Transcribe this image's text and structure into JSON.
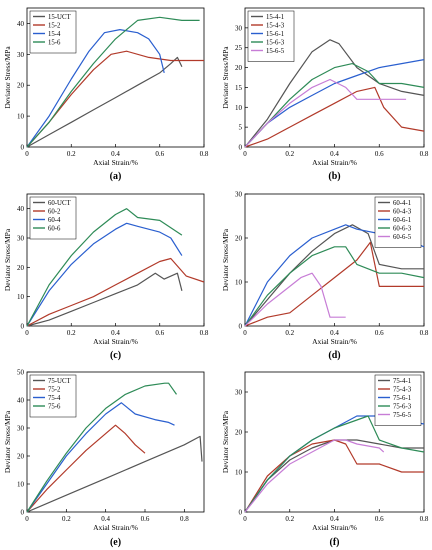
{
  "chart_data": [
    {
      "type": "line",
      "panel_label": "(a)",
      "xlabel": "Axial Strain/%",
      "ylabel": "Deviator Stress/MPa",
      "xlim": [
        0,
        0.8
      ],
      "ylim": [
        0,
        45
      ],
      "xticks": [
        0,
        0.2,
        0.4,
        0.6,
        0.8
      ],
      "yticks": [
        0,
        10,
        20,
        30,
        40
      ],
      "grid": false,
      "legend_position": "top-left",
      "series": [
        {
          "name": "15-UCT",
          "color": "#555555",
          "x": [
            0,
            0.1,
            0.2,
            0.3,
            0.4,
            0.5,
            0.6,
            0.65,
            0.68,
            0.7
          ],
          "y": [
            0,
            4,
            8,
            12,
            16,
            20,
            24,
            27,
            29,
            26
          ]
        },
        {
          "name": "15-2",
          "color": "#b23a2a",
          "x": [
            0,
            0.1,
            0.2,
            0.3,
            0.38,
            0.45,
            0.55,
            0.65,
            0.7,
            0.8
          ],
          "y": [
            0,
            8,
            17,
            25,
            30,
            31,
            29,
            28,
            28,
            28
          ]
        },
        {
          "name": "15-4",
          "color": "#2a5fcf",
          "x": [
            0,
            0.1,
            0.2,
            0.28,
            0.35,
            0.42,
            0.5,
            0.55,
            0.6,
            0.62
          ],
          "y": [
            0,
            10,
            22,
            31,
            37,
            38,
            37,
            35,
            30,
            24
          ]
        },
        {
          "name": "15-6",
          "color": "#2e8b57",
          "x": [
            0,
            0.1,
            0.2,
            0.3,
            0.4,
            0.45,
            0.5,
            0.6,
            0.7,
            0.78
          ],
          "y": [
            0,
            8,
            18,
            27,
            35,
            38,
            41,
            42,
            41,
            41
          ]
        }
      ]
    },
    {
      "type": "line",
      "panel_label": "(b)",
      "xlabel": "Axial Strain/%",
      "ylabel": "Deviator Stress/MPa",
      "xlim": [
        0,
        0.8
      ],
      "ylim": [
        0,
        35
      ],
      "xticks": [
        0,
        0.2,
        0.4,
        0.6,
        0.8
      ],
      "yticks": [
        0,
        5,
        10,
        15,
        20,
        25,
        30
      ],
      "grid": false,
      "legend_position": "top-left",
      "series": [
        {
          "name": "15-4-1",
          "color": "#555555",
          "x": [
            0,
            0.1,
            0.2,
            0.3,
            0.38,
            0.42,
            0.5,
            0.6,
            0.7,
            0.8
          ],
          "y": [
            0,
            7,
            16,
            24,
            27,
            26,
            20,
            16,
            14,
            13
          ]
        },
        {
          "name": "15-4-3",
          "color": "#b23a2a",
          "x": [
            0,
            0.1,
            0.2,
            0.3,
            0.4,
            0.5,
            0.58,
            0.62,
            0.7,
            0.8
          ],
          "y": [
            0,
            2,
            5,
            8,
            11,
            14,
            15,
            10,
            5,
            4
          ]
        },
        {
          "name": "15-6-1",
          "color": "#2a5fcf",
          "x": [
            0,
            0.1,
            0.2,
            0.3,
            0.4,
            0.5,
            0.6,
            0.7,
            0.8
          ],
          "y": [
            0,
            6,
            10,
            13,
            16,
            18,
            20,
            21,
            22
          ]
        },
        {
          "name": "15-6-3",
          "color": "#2e8b57",
          "x": [
            0,
            0.1,
            0.2,
            0.3,
            0.4,
            0.48,
            0.55,
            0.6,
            0.7,
            0.8
          ],
          "y": [
            0,
            6,
            12,
            17,
            20,
            21,
            19,
            16,
            16,
            15
          ]
        },
        {
          "name": "15-6-5",
          "color": "#c77dd6",
          "x": [
            0,
            0.1,
            0.2,
            0.3,
            0.38,
            0.45,
            0.5,
            0.6,
            0.72
          ],
          "y": [
            0,
            6,
            11,
            15,
            17,
            15,
            12,
            12,
            12
          ]
        }
      ]
    },
    {
      "type": "line",
      "panel_label": "(c)",
      "xlabel": "Axial Strain/%",
      "ylabel": "Deviator Stress/MPa",
      "xlim": [
        0,
        0.8
      ],
      "ylim": [
        0,
        45
      ],
      "xticks": [
        0,
        0.2,
        0.4,
        0.6,
        0.8
      ],
      "yticks": [
        0,
        10,
        20,
        30,
        40
      ],
      "grid": false,
      "legend_position": "top-left",
      "series": [
        {
          "name": "60-UCT",
          "color": "#555555",
          "x": [
            0,
            0.1,
            0.2,
            0.3,
            0.4,
            0.5,
            0.58,
            0.62,
            0.68,
            0.7
          ],
          "y": [
            0,
            2,
            5,
            8,
            11,
            14,
            18,
            16,
            18,
            12
          ]
        },
        {
          "name": "60-2",
          "color": "#b23a2a",
          "x": [
            0,
            0.1,
            0.2,
            0.3,
            0.4,
            0.5,
            0.6,
            0.65,
            0.72,
            0.8
          ],
          "y": [
            0,
            4,
            7,
            10,
            14,
            18,
            22,
            23,
            17,
            15
          ]
        },
        {
          "name": "60-4",
          "color": "#2a5fcf",
          "x": [
            0,
            0.1,
            0.2,
            0.3,
            0.4,
            0.45,
            0.5,
            0.6,
            0.65,
            0.7
          ],
          "y": [
            0,
            12,
            21,
            28,
            33,
            35,
            34,
            32,
            30,
            24
          ]
        },
        {
          "name": "60-6",
          "color": "#2e8b57",
          "x": [
            0,
            0.1,
            0.2,
            0.3,
            0.4,
            0.45,
            0.5,
            0.6,
            0.7
          ],
          "y": [
            0,
            14,
            24,
            32,
            38,
            40,
            37,
            36,
            31
          ]
        }
      ]
    },
    {
      "type": "line",
      "panel_label": "(d)",
      "xlabel": "Axial Strain/%",
      "ylabel": "Deviator Stress/MPa",
      "xlim": [
        0,
        0.8
      ],
      "ylim": [
        0,
        30
      ],
      "xticks": [
        0,
        0.2,
        0.4,
        0.6,
        0.8
      ],
      "yticks": [
        0,
        10,
        20,
        30
      ],
      "grid": false,
      "legend_position": "top-right",
      "series": [
        {
          "name": "60-4-1",
          "color": "#555555",
          "x": [
            0,
            0.1,
            0.2,
            0.3,
            0.4,
            0.48,
            0.55,
            0.6,
            0.7,
            0.8
          ],
          "y": [
            0,
            6,
            12,
            17,
            21,
            23,
            21,
            14,
            13,
            13
          ]
        },
        {
          "name": "60-4-3",
          "color": "#b23a2a",
          "x": [
            0,
            0.1,
            0.2,
            0.3,
            0.4,
            0.5,
            0.56,
            0.6,
            0.7,
            0.8
          ],
          "y": [
            0,
            2,
            3,
            7,
            11,
            15,
            19,
            9,
            9,
            9
          ]
        },
        {
          "name": "60-6-1",
          "color": "#2a5fcf",
          "x": [
            0,
            0.1,
            0.2,
            0.3,
            0.4,
            0.45,
            0.5,
            0.6,
            0.7,
            0.8
          ],
          "y": [
            0,
            10,
            16,
            20,
            22,
            23,
            22,
            21,
            20,
            18
          ]
        },
        {
          "name": "60-6-3",
          "color": "#2e8b57",
          "x": [
            0,
            0.1,
            0.2,
            0.3,
            0.4,
            0.45,
            0.5,
            0.6,
            0.7,
            0.8
          ],
          "y": [
            0,
            7,
            12,
            16,
            18,
            18,
            14,
            12,
            12,
            11
          ]
        },
        {
          "name": "60-6-5",
          "color": "#c77dd6",
          "x": [
            0,
            0.1,
            0.2,
            0.25,
            0.3,
            0.34,
            0.38,
            0.45
          ],
          "y": [
            0,
            5,
            9,
            11,
            12,
            9,
            2,
            2
          ]
        }
      ]
    },
    {
      "type": "line",
      "panel_label": "(e)",
      "xlabel": "Axial Strain/%",
      "ylabel": "Deviator Stress/MPa",
      "xlim": [
        0,
        0.9
      ],
      "ylim": [
        0,
        50
      ],
      "xticks": [
        0,
        0.2,
        0.4,
        0.6,
        0.8
      ],
      "yticks": [
        0,
        10,
        20,
        30,
        40,
        50
      ],
      "grid": false,
      "legend_position": "top-left",
      "series": [
        {
          "name": "75-UCT",
          "color": "#555555",
          "x": [
            0,
            0.2,
            0.4,
            0.6,
            0.8,
            0.88,
            0.89
          ],
          "y": [
            0,
            6,
            12,
            18,
            24,
            27,
            18
          ]
        },
        {
          "name": "75-2",
          "color": "#b23a2a",
          "x": [
            0,
            0.1,
            0.2,
            0.3,
            0.4,
            0.45,
            0.5,
            0.55,
            0.6
          ],
          "y": [
            0,
            8,
            15,
            22,
            28,
            31,
            28,
            24,
            21
          ]
        },
        {
          "name": "75-4",
          "color": "#2a5fcf",
          "x": [
            0,
            0.1,
            0.2,
            0.3,
            0.4,
            0.48,
            0.55,
            0.65,
            0.72,
            0.75
          ],
          "y": [
            0,
            10,
            20,
            28,
            35,
            39,
            35,
            33,
            32,
            31
          ]
        },
        {
          "name": "75-6",
          "color": "#2e8b57",
          "x": [
            0,
            0.1,
            0.2,
            0.3,
            0.4,
            0.5,
            0.6,
            0.7,
            0.72,
            0.76
          ],
          "y": [
            0,
            11,
            21,
            30,
            37,
            42,
            45,
            46,
            46,
            42
          ]
        }
      ]
    },
    {
      "type": "line",
      "panel_label": "(f)",
      "xlabel": "Axial Strain/%",
      "ylabel": "Deviator Stress/MPa",
      "xlim": [
        0,
        0.8
      ],
      "ylim": [
        0,
        35
      ],
      "xticks": [
        0,
        0.2,
        0.4,
        0.6,
        0.8
      ],
      "yticks": [
        0,
        10,
        20,
        30
      ],
      "grid": false,
      "legend_position": "top-right",
      "series": [
        {
          "name": "75-4-1",
          "color": "#555555",
          "x": [
            0,
            0.1,
            0.2,
            0.3,
            0.4,
            0.5,
            0.6,
            0.7,
            0.8
          ],
          "y": [
            0,
            8,
            13,
            16,
            18,
            18,
            17,
            16,
            16
          ]
        },
        {
          "name": "75-4-3",
          "color": "#b23a2a",
          "x": [
            0,
            0.1,
            0.2,
            0.3,
            0.4,
            0.45,
            0.5,
            0.6,
            0.7,
            0.8
          ],
          "y": [
            0,
            9,
            14,
            17,
            18,
            17,
            12,
            12,
            10,
            10
          ]
        },
        {
          "name": "75-6-1",
          "color": "#2a5fcf",
          "x": [
            0,
            0.1,
            0.2,
            0.3,
            0.4,
            0.5,
            0.55,
            0.6,
            0.7,
            0.8
          ],
          "y": [
            0,
            8,
            14,
            18,
            21,
            24,
            24,
            24,
            23,
            22
          ]
        },
        {
          "name": "75-6-3",
          "color": "#2e8b57",
          "x": [
            0,
            0.1,
            0.2,
            0.3,
            0.4,
            0.5,
            0.55,
            0.6,
            0.7,
            0.8
          ],
          "y": [
            0,
            8,
            14,
            18,
            21,
            23,
            24,
            18,
            16,
            15
          ]
        },
        {
          "name": "75-6-5",
          "color": "#c77dd6",
          "x": [
            0,
            0.1,
            0.2,
            0.3,
            0.4,
            0.45,
            0.5,
            0.6,
            0.62
          ],
          "y": [
            0,
            7,
            12,
            15,
            18,
            18,
            17,
            16,
            15
          ]
        }
      ]
    }
  ]
}
